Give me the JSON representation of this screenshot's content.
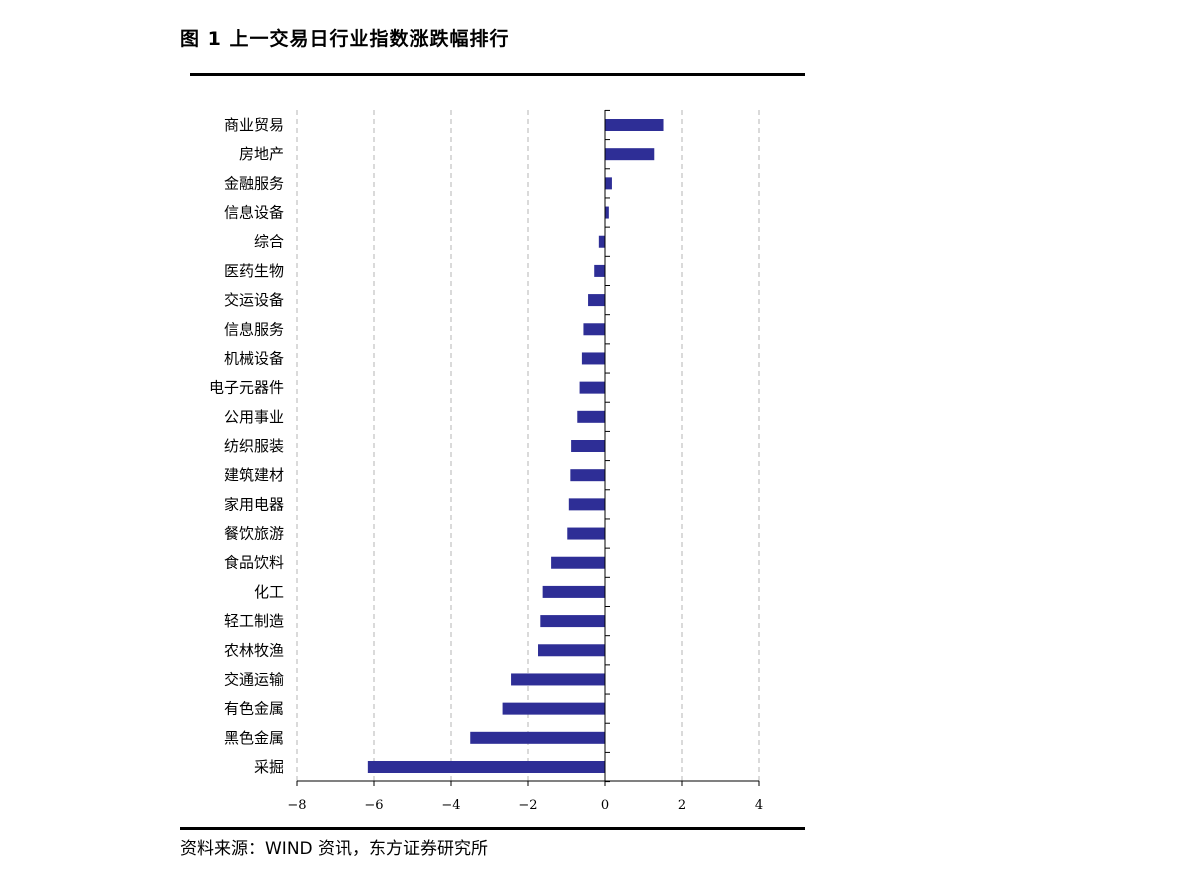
{
  "header": {
    "title": "图 1 上一交易日行业指数涨跌幅排行"
  },
  "footer": {
    "source": "资料来源：WIND 资讯，东方证券研究所"
  },
  "colors": {
    "bar": "#2E2E96",
    "grid": "#b5b5b5",
    "axis": "#000000"
  },
  "chart_data": {
    "type": "bar",
    "orientation": "horizontal",
    "title": "",
    "xlabel": "",
    "ylabel": "",
    "xlim": [
      -8,
      4
    ],
    "xticks": [
      -8,
      -6,
      -4,
      -2,
      0,
      2,
      4
    ],
    "xtick_labels": [
      "−8",
      "−6",
      "−4",
      "−2",
      "0",
      "2",
      "4"
    ],
    "grid": "vertical dashed",
    "categories": [
      "商业贸易",
      "房地产",
      "金融服务",
      "信息设备",
      "综合",
      "医药生物",
      "交运设备",
      "信息服务",
      "机械设备",
      "电子元器件",
      "公用事业",
      "纺织服装",
      "建筑建材",
      "家用电器",
      "餐饮旅游",
      "食品饮料",
      "化工",
      "轻工制造",
      "农林牧渔",
      "交通运输",
      "有色金属",
      "黑色金属",
      "采掘"
    ],
    "values": [
      1.52,
      1.28,
      0.18,
      0.1,
      -0.16,
      -0.28,
      -0.44,
      -0.56,
      -0.6,
      -0.66,
      -0.72,
      -0.88,
      -0.9,
      -0.94,
      -0.98,
      -1.4,
      -1.62,
      -1.68,
      -1.74,
      -2.44,
      -2.66,
      -3.5,
      -6.16
    ]
  }
}
